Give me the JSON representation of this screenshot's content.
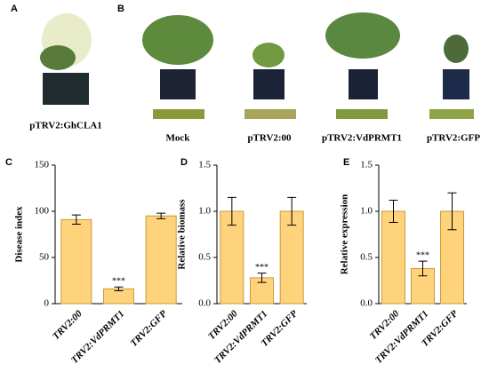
{
  "panels": {
    "A": "A",
    "B": "B",
    "C": "C",
    "D": "D",
    "E": "E"
  },
  "photo_captions": {
    "a": "pTRV2:GhCLA1",
    "b": [
      "Mock",
      "pTRV2:00",
      "pTRV2:VdPRMT1",
      "pTRV2:GFP"
    ]
  },
  "chart_data": [
    {
      "type": "bar",
      "y_label": "Disease index",
      "categories": [
        "TRV2:00",
        "TRV2:VdPRMT1",
        "TRV2:GFP"
      ],
      "values": [
        91,
        16,
        95
      ],
      "errors": [
        5,
        2,
        3
      ],
      "annotations": [
        null,
        "***",
        null
      ],
      "color": "#fed37c",
      "ylim": [
        0,
        150
      ],
      "yticks": [
        0,
        50,
        100,
        150
      ]
    },
    {
      "type": "bar",
      "y_label": "Relative biomass",
      "categories": [
        "TRV2:00",
        "TRV2:VdPRMT1",
        "TRV2:GFP"
      ],
      "values": [
        1.0,
        0.28,
        1.0
      ],
      "errors": [
        0.15,
        0.05,
        0.15
      ],
      "annotations": [
        null,
        "***",
        null
      ],
      "color": "#fed37c",
      "ylim": [
        0,
        1.5
      ],
      "yticks": [
        {
          "value": 0,
          "label": "0.0"
        },
        0.5,
        {
          "value": 1,
          "label": "1.0"
        },
        1.5
      ]
    },
    {
      "type": "bar",
      "y_label": "Relative expression",
      "categories": [
        "TRV2:00",
        "TRV2:VdPRMT1",
        "TRV2:GFP"
      ],
      "values": [
        1.0,
        0.38,
        1.0
      ],
      "errors": [
        0.12,
        0.08,
        0.2
      ],
      "annotations": [
        null,
        "***",
        null
      ],
      "color": "#fed37c",
      "ylim": [
        0,
        1.5
      ],
      "yticks": [
        {
          "value": 0,
          "label": "0.0"
        },
        0.5,
        {
          "value": 1,
          "label": "1.0"
        },
        1.5
      ]
    }
  ]
}
